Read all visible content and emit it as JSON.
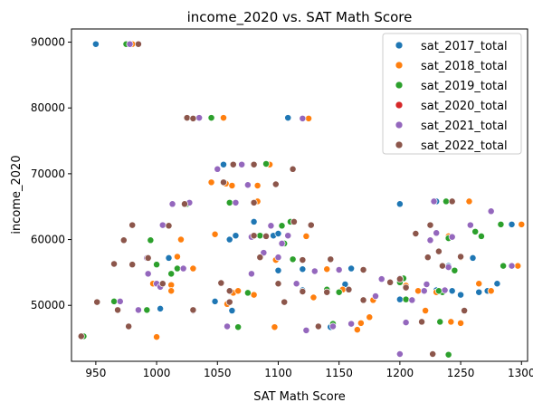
{
  "chart_data": {
    "type": "scatter",
    "title": "income_2020 vs. SAT Math Score",
    "xlabel": "SAT Math Score",
    "ylabel": "income_2020",
    "xlim": [
      930,
      1305
    ],
    "ylim": [
      41500,
      92000
    ],
    "xticks": [
      950,
      1000,
      1050,
      1100,
      1150,
      1200,
      1250,
      1300
    ],
    "yticks": [
      50000,
      60000,
      70000,
      80000,
      90000
    ],
    "legend_position": "top-right",
    "grid": false,
    "series": [
      {
        "name": "sat_2017_total",
        "color": "#1f77b4",
        "points": [
          [
            950,
            89700
          ],
          [
            1055,
            71400
          ],
          [
            1060,
            60000
          ],
          [
            1065,
            60600
          ],
          [
            1080,
            62700
          ],
          [
            1108,
            78500
          ],
          [
            1120,
            52300
          ],
          [
            1120,
            55500
          ],
          [
            1200,
            65400
          ],
          [
            1230,
            65800
          ],
          [
            1240,
            42500
          ],
          [
            1260,
            57200
          ],
          [
            1265,
            52000
          ],
          [
            1272,
            52200
          ],
          [
            1285,
            56000
          ],
          [
            1292,
            62300
          ],
          [
            1280,
            53300
          ],
          [
            1062,
            49200
          ],
          [
            1048,
            50600
          ],
          [
            1003,
            49500
          ],
          [
            1143,
            46700
          ],
          [
            1145,
            47200
          ],
          [
            1240,
            56000
          ],
          [
            1096,
            60600
          ],
          [
            1100,
            55300
          ],
          [
            1200,
            50900
          ],
          [
            1230,
            52300
          ],
          [
            1243,
            52200
          ],
          [
            1250,
            51600
          ],
          [
            1100,
            60900
          ],
          [
            1010,
            57200
          ],
          [
            1155,
            53200
          ],
          [
            1160,
            55600
          ]
        ]
      },
      {
        "name": "sat_2018_total",
        "color": "#ff7f0e",
        "points": [
          [
            980,
            89700
          ],
          [
            1055,
            78500
          ],
          [
            1125,
            78400
          ],
          [
            1045,
            68700
          ],
          [
            1057,
            68500
          ],
          [
            1083,
            68200
          ],
          [
            1093,
            71400
          ],
          [
            1083,
            65800
          ],
          [
            1062,
            68200
          ],
          [
            1020,
            60000
          ],
          [
            1017,
            57400
          ],
          [
            1030,
            55600
          ],
          [
            1012,
            53100
          ],
          [
            997,
            53300
          ],
          [
            1000,
            45200
          ],
          [
            1012,
            52200
          ],
          [
            1063,
            51900
          ],
          [
            1067,
            52200
          ],
          [
            1058,
            50200
          ],
          [
            1080,
            51600
          ],
          [
            1097,
            46700
          ],
          [
            1123,
            60500
          ],
          [
            1140,
            55500
          ],
          [
            1153,
            52400
          ],
          [
            1168,
            47300
          ],
          [
            1175,
            48200
          ],
          [
            1215,
            52200
          ],
          [
            1230,
            52000
          ],
          [
            1240,
            60500
          ],
          [
            1250,
            57300
          ],
          [
            1257,
            65800
          ],
          [
            1265,
            53300
          ],
          [
            1275,
            52200
          ],
          [
            1300,
            62300
          ],
          [
            1297,
            56000
          ],
          [
            1250,
            47300
          ],
          [
            1178,
            50800
          ],
          [
            1205,
            53000
          ],
          [
            1221,
            49200
          ],
          [
            1242,
            47500
          ],
          [
            1165,
            46300
          ],
          [
            1098,
            56900
          ],
          [
            1129,
            51200
          ],
          [
            1048,
            60800
          ]
        ]
      },
      {
        "name": "sat_2019_total",
        "color": "#2ca02c",
        "points": [
          [
            940,
            45300
          ],
          [
            975,
            89700
          ],
          [
            1045,
            78500
          ],
          [
            1010,
            62100
          ],
          [
            1012,
            54800
          ],
          [
            1017,
            55600
          ],
          [
            1025,
            65400
          ],
          [
            1060,
            65600
          ],
          [
            1090,
            71500
          ],
          [
            1085,
            60600
          ],
          [
            1103,
            62100
          ],
          [
            1105,
            59400
          ],
          [
            1112,
            57000
          ],
          [
            1075,
            51900
          ],
          [
            1067,
            46700
          ],
          [
            995,
            59900
          ],
          [
            992,
            49300
          ],
          [
            965,
            50600
          ],
          [
            1000,
            56200
          ],
          [
            1145,
            47200
          ],
          [
            1140,
            52400
          ],
          [
            1203,
            54100
          ],
          [
            1205,
            50900
          ],
          [
            1233,
            47500
          ],
          [
            1240,
            42500
          ],
          [
            1238,
            65800
          ],
          [
            1235,
            52000
          ],
          [
            1240,
            60200
          ],
          [
            1262,
            61200
          ],
          [
            1267,
            60500
          ],
          [
            1283,
            62300
          ],
          [
            1285,
            56000
          ],
          [
            1245,
            55300
          ],
          [
            1200,
            53500
          ],
          [
            1232,
            52200
          ],
          [
            1115,
            53300
          ],
          [
            1150,
            52000
          ],
          [
            1110,
            62700
          ]
        ]
      },
      {
        "name": "sat_2020_total",
        "color": "#d62728",
        "points": []
      },
      {
        "name": "sat_2021_total",
        "color": "#9467bd",
        "points": [
          [
            978,
            89700
          ],
          [
            1035,
            78500
          ],
          [
            1120,
            78400
          ],
          [
            1050,
            70700
          ],
          [
            1070,
            71400
          ],
          [
            1065,
            65600
          ],
          [
            1075,
            68300
          ],
          [
            1078,
            60400
          ],
          [
            1027,
            65600
          ],
          [
            1013,
            65400
          ],
          [
            1005,
            62200
          ],
          [
            992,
            57200
          ],
          [
            993,
            54800
          ],
          [
            1000,
            53300
          ],
          [
            985,
            49300
          ],
          [
            970,
            50600
          ],
          [
            1022,
            55600
          ],
          [
            1003,
            52800
          ],
          [
            1030,
            49200
          ],
          [
            1058,
            46800
          ],
          [
            1078,
            54800
          ],
          [
            1100,
            57300
          ],
          [
            1103,
            59400
          ],
          [
            1108,
            60600
          ],
          [
            1115,
            53300
          ],
          [
            1123,
            46200
          ],
          [
            1145,
            46800
          ],
          [
            1150,
            55400
          ],
          [
            1160,
            47200
          ],
          [
            1185,
            54000
          ],
          [
            1200,
            54100
          ],
          [
            1210,
            50800
          ],
          [
            1200,
            42600
          ],
          [
            1205,
            47400
          ],
          [
            1220,
            52200
          ],
          [
            1222,
            53200
          ],
          [
            1225,
            59900
          ],
          [
            1228,
            65800
          ],
          [
            1230,
            61000
          ],
          [
            1237,
            52300
          ],
          [
            1240,
            55800
          ],
          [
            1258,
            62200
          ],
          [
            1275,
            64300
          ],
          [
            1292,
            56000
          ],
          [
            1243,
            60400
          ],
          [
            1088,
            58000
          ],
          [
            1094,
            62100
          ],
          [
            1130,
            55200
          ],
          [
            1180,
            51400
          ]
        ]
      },
      {
        "name": "sat_2022_total",
        "color": "#8c564b",
        "points": [
          [
            938,
            45300
          ],
          [
            985,
            89700
          ],
          [
            1025,
            78500
          ],
          [
            1030,
            78400
          ],
          [
            1055,
            68700
          ],
          [
            1063,
            71400
          ],
          [
            1080,
            71400
          ],
          [
            1098,
            68400
          ],
          [
            1112,
            70700
          ],
          [
            1080,
            60600
          ],
          [
            1090,
            60500
          ],
          [
            1113,
            62700
          ],
          [
            1120,
            56900
          ],
          [
            1127,
            62200
          ],
          [
            1085,
            57300
          ],
          [
            1010,
            62100
          ],
          [
            1023,
            65400
          ],
          [
            980,
            62200
          ],
          [
            973,
            59900
          ],
          [
            965,
            56300
          ],
          [
            980,
            56200
          ],
          [
            993,
            57200
          ],
          [
            1005,
            53300
          ],
          [
            951,
            50500
          ],
          [
            968,
            49300
          ],
          [
            977,
            46800
          ],
          [
            1030,
            49300
          ],
          [
            1053,
            53400
          ],
          [
            1060,
            52200
          ],
          [
            1060,
            50500
          ],
          [
            1100,
            53300
          ],
          [
            1105,
            50500
          ],
          [
            1120,
            52100
          ],
          [
            1133,
            46800
          ],
          [
            1143,
            57000
          ],
          [
            1158,
            52400
          ],
          [
            1170,
            55400
          ],
          [
            1170,
            50800
          ],
          [
            1192,
            53500
          ],
          [
            1200,
            54000
          ],
          [
            1205,
            52700
          ],
          [
            1213,
            60900
          ],
          [
            1218,
            47500
          ],
          [
            1223,
            57300
          ],
          [
            1225,
            62200
          ],
          [
            1227,
            42600
          ],
          [
            1235,
            56000
          ],
          [
            1243,
            65800
          ],
          [
            1250,
            57400
          ],
          [
            1253,
            49200
          ],
          [
            1232,
            58200
          ],
          [
            1080,
            65600
          ],
          [
            1140,
            52000
          ]
        ]
      }
    ]
  }
}
